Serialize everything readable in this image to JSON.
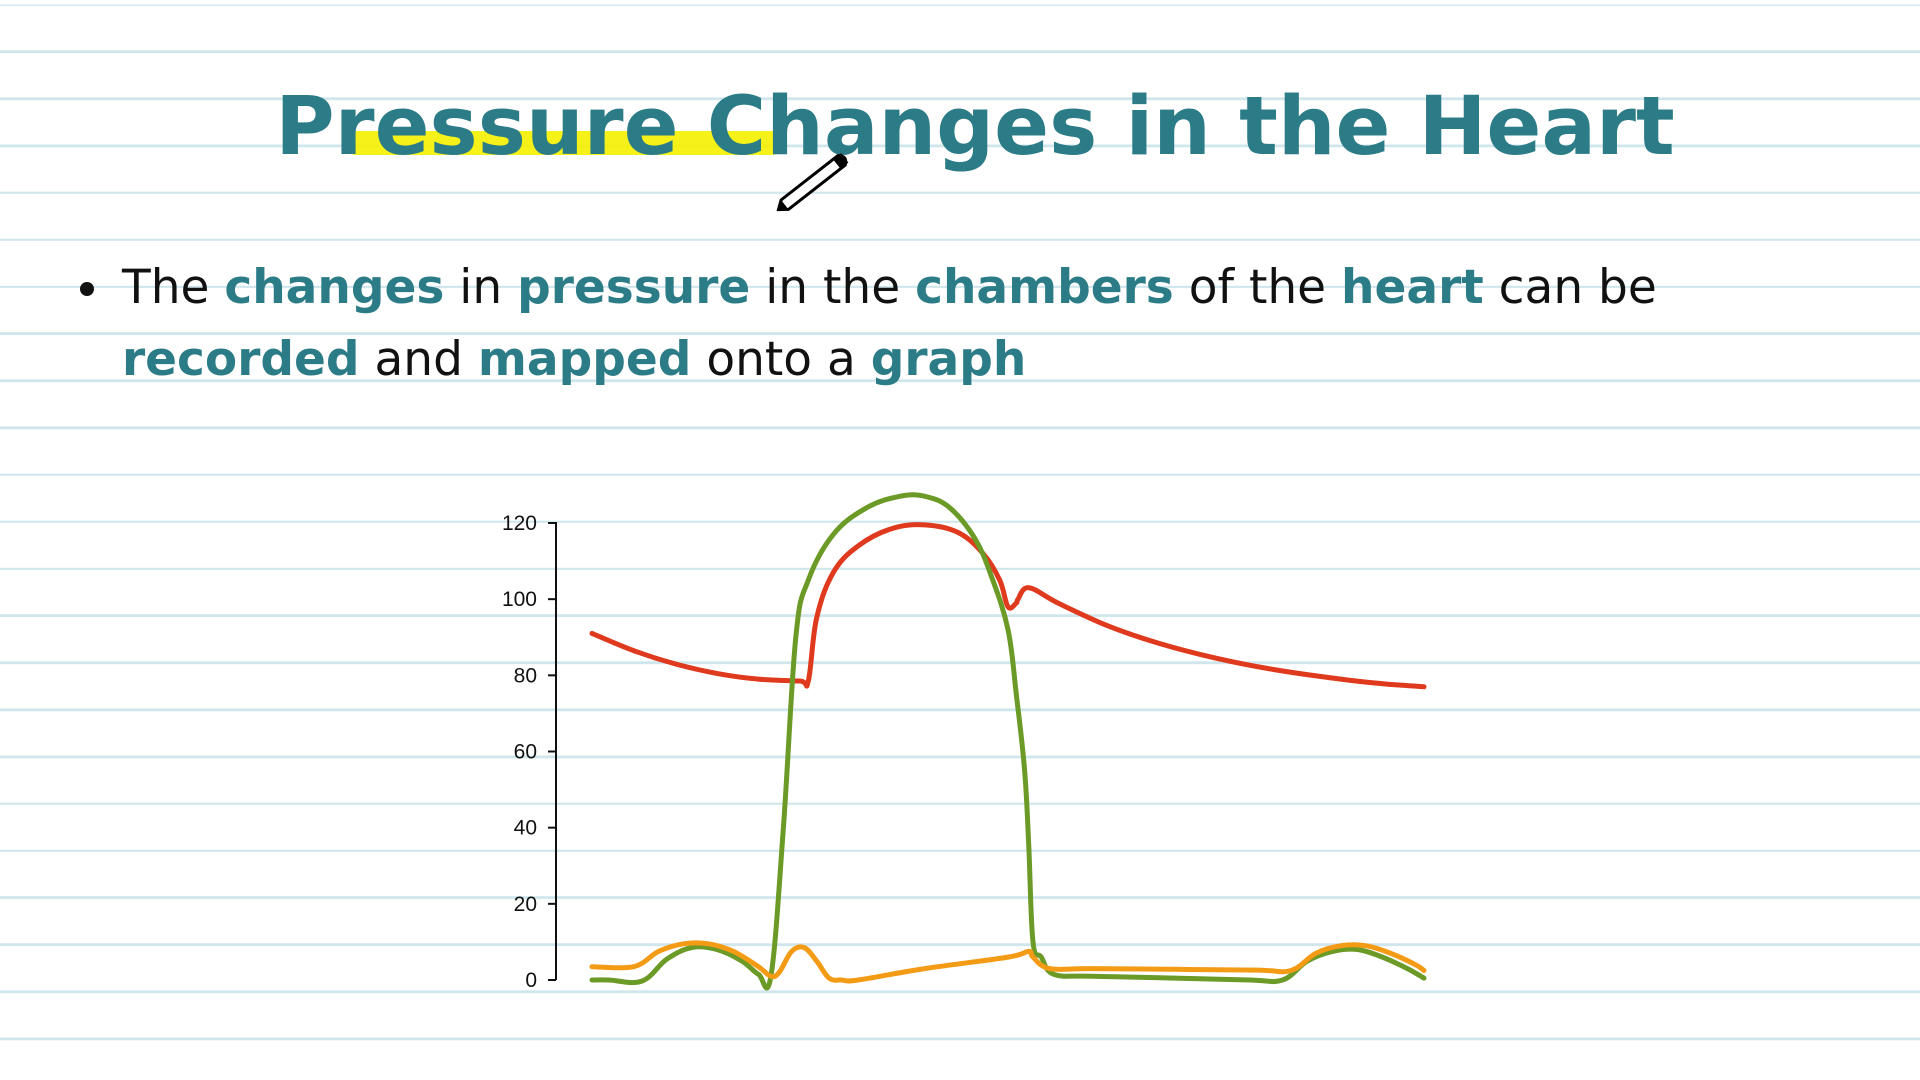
{
  "slide": {
    "title": "Pressure Changes in the Heart",
    "bullet": [
      {
        "t": "The ",
        "k": false
      },
      {
        "t": "changes",
        "k": true
      },
      {
        "t": " in ",
        "k": false
      },
      {
        "t": "pressure",
        "k": true
      },
      {
        "t": " in the ",
        "k": false
      },
      {
        "t": "chambers",
        "k": true
      },
      {
        "t": " of the ",
        "k": false
      },
      {
        "t": "heart",
        "k": true
      },
      {
        "t": " can be ",
        "k": false
      },
      {
        "t": "recorded",
        "k": true
      },
      {
        "t": " and ",
        "k": false
      },
      {
        "t": "mapped",
        "k": true
      },
      {
        "t": " onto a ",
        "k": false
      },
      {
        "t": "graph",
        "k": true
      }
    ],
    "colors": {
      "accent": "#2c7c87",
      "highlight": "#f5ef00"
    }
  },
  "chart_data": {
    "type": "line",
    "ylim": [
      0,
      120
    ],
    "xlim": [
      0,
      1
    ],
    "yticks": [
      0,
      20,
      40,
      60,
      80,
      100,
      120
    ],
    "tick_labels": [
      "0",
      "20",
      "40",
      "60",
      "80",
      "100",
      "120"
    ],
    "series": [
      {
        "color": "#e03a1e",
        "points": [
          [
            0,
            91
          ],
          [
            0.05,
            86.5
          ],
          [
            0.1,
            83
          ],
          [
            0.15,
            80.5
          ],
          [
            0.2,
            79
          ],
          [
            0.25,
            78.5
          ],
          [
            0.26,
            78.5
          ],
          [
            0.27,
            95
          ],
          [
            0.29,
            107
          ],
          [
            0.32,
            114
          ],
          [
            0.36,
            118.5
          ],
          [
            0.4,
            119.5
          ],
          [
            0.44,
            117.5
          ],
          [
            0.47,
            112
          ],
          [
            0.49,
            105
          ],
          [
            0.5,
            98
          ],
          [
            0.51,
            99
          ],
          [
            0.512,
            100
          ],
          [
            0.525,
            103
          ],
          [
            0.56,
            99
          ],
          [
            0.62,
            93
          ],
          [
            0.68,
            88.5
          ],
          [
            0.75,
            84.5
          ],
          [
            0.82,
            81.5
          ],
          [
            0.9,
            79
          ],
          [
            0.95,
            77.8
          ],
          [
            1,
            77
          ]
        ]
      },
      {
        "color": "#6b9a26",
        "points": [
          [
            0,
            0
          ],
          [
            0.02,
            0
          ],
          [
            0.06,
            -0.3
          ],
          [
            0.09,
            5.5
          ],
          [
            0.12,
            8.5
          ],
          [
            0.15,
            8
          ],
          [
            0.18,
            5
          ],
          [
            0.2,
            1.5
          ],
          [
            0.215,
            1
          ],
          [
            0.23,
            40
          ],
          [
            0.245,
            90
          ],
          [
            0.26,
            105
          ],
          [
            0.29,
            117
          ],
          [
            0.33,
            124
          ],
          [
            0.37,
            127
          ],
          [
            0.4,
            127
          ],
          [
            0.43,
            124
          ],
          [
            0.46,
            116
          ],
          [
            0.48,
            106
          ],
          [
            0.5,
            92
          ],
          [
            0.51,
            75
          ],
          [
            0.52,
            55
          ],
          [
            0.525,
            35
          ],
          [
            0.53,
            10
          ],
          [
            0.54,
            6
          ],
          [
            0.555,
            1.5
          ],
          [
            0.6,
            1
          ],
          [
            0.7,
            0.5
          ],
          [
            0.79,
            0
          ],
          [
            0.83,
            0
          ],
          [
            0.86,
            5
          ],
          [
            0.89,
            7.5
          ],
          [
            0.92,
            8
          ],
          [
            0.95,
            6
          ],
          [
            0.98,
            3
          ],
          [
            1,
            0.5
          ]
        ]
      },
      {
        "color": "#f49b16",
        "points": [
          [
            0,
            3.5
          ],
          [
            0.05,
            3.5
          ],
          [
            0.08,
            7.5
          ],
          [
            0.11,
            9.5
          ],
          [
            0.14,
            9.5
          ],
          [
            0.17,
            7.5
          ],
          [
            0.2,
            3.5
          ],
          [
            0.215,
            1
          ],
          [
            0.225,
            2
          ],
          [
            0.24,
            7.5
          ],
          [
            0.255,
            8.5
          ],
          [
            0.27,
            5
          ],
          [
            0.285,
            0.5
          ],
          [
            0.3,
            0
          ],
          [
            0.32,
            0
          ],
          [
            0.4,
            3
          ],
          [
            0.5,
            6
          ],
          [
            0.525,
            7.5
          ],
          [
            0.53,
            6
          ],
          [
            0.55,
            3
          ],
          [
            0.6,
            3
          ],
          [
            0.7,
            2.8
          ],
          [
            0.8,
            2.6
          ],
          [
            0.84,
            2.5
          ],
          [
            0.87,
            7
          ],
          [
            0.9,
            9
          ],
          [
            0.93,
            9
          ],
          [
            0.96,
            7
          ],
          [
            0.99,
            4
          ],
          [
            1,
            2.5
          ]
        ]
      }
    ]
  }
}
